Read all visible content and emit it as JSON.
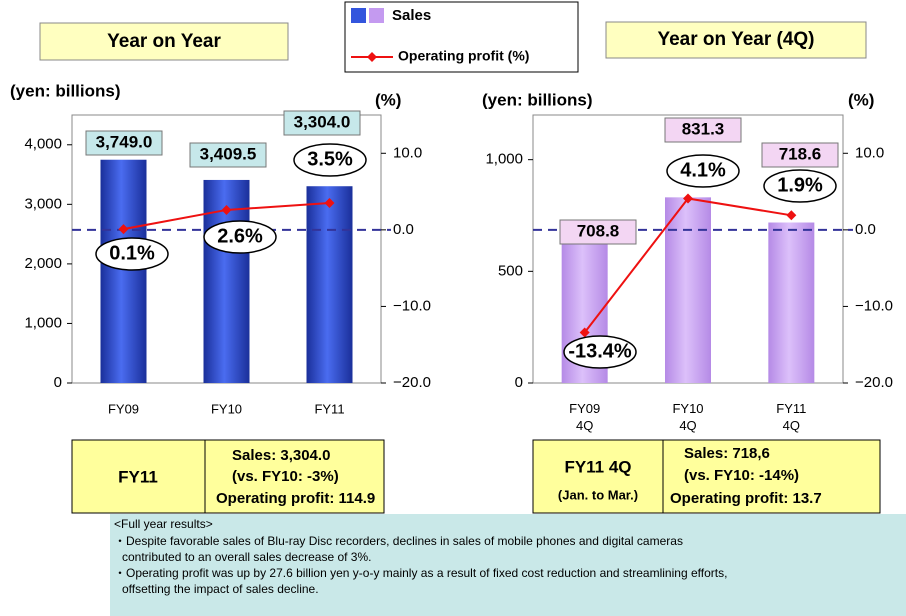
{
  "chart_data": [
    {
      "type": "bar",
      "title": "Year on Year",
      "y_label": "(yen: billions)",
      "y2_label": "(%)",
      "categories": [
        "FY09",
        "FY10",
        "FY11"
      ],
      "series": [
        {
          "name": "Sales",
          "color": "#2244cc",
          "values": [
            3749.0,
            3409.5,
            3304.0
          ],
          "value_labels": [
            "3,749.0",
            "3,409.5",
            "3,304.0"
          ]
        },
        {
          "name": "Operating profit (%)",
          "type": "line",
          "axis": "y2",
          "color": "#ee1111",
          "values": [
            0.1,
            2.6,
            3.5
          ],
          "value_labels": [
            "0.1%",
            "2.6%",
            "3.5%"
          ]
        }
      ],
      "ylim": [
        0,
        4500
      ],
      "yticks": [
        0,
        {
          "value": 1000,
          "label": "1,000"
        },
        {
          "value": 2000,
          "label": "2,000"
        },
        {
          "value": 3000,
          "label": "3,000"
        },
        {
          "value": 4000,
          "label": "4,000"
        }
      ],
      "y2lim": [
        -20,
        15
      ],
      "y2ticks": [
        {
          "value": -20,
          "label": "−20.0"
        },
        {
          "value": -10,
          "label": "−10.0"
        },
        {
          "value": 0,
          "label": "0.0"
        },
        {
          "value": 10,
          "label": "10.0"
        }
      ]
    },
    {
      "type": "bar",
      "title": "Year on Year (4Q)",
      "y_label": "(yen: billions)",
      "y2_label": "(%)",
      "categories": [
        [
          "FY09",
          "4Q"
        ],
        [
          "FY10",
          "4Q"
        ],
        [
          "FY11",
          "4Q"
        ]
      ],
      "series": [
        {
          "color": "#c49af0",
          "values": [
            708.8,
            831.3,
            718.6
          ],
          "value_labels": [
            "708.8",
            "831.3",
            "718.6"
          ]
        },
        {
          "type": "line",
          "axis": "y2",
          "color": "#ee1111",
          "values": [
            -13.4,
            4.1,
            1.9
          ],
          "value_labels": [
            "-13.4%",
            "4.1%",
            "1.9%"
          ]
        }
      ],
      "ylim": [
        0,
        1200
      ],
      "yticks": [
        0,
        500,
        {
          "value": 1000,
          "label": "1,000"
        }
      ],
      "y2lim": [
        -20,
        15
      ],
      "y2ticks": [
        {
          "value": -20,
          "label": "−20.0"
        },
        {
          "value": -10,
          "label": "−10.0"
        },
        {
          "value": 0,
          "label": "0.0"
        },
        {
          "value": 10,
          "label": "10.0"
        }
      ]
    }
  ],
  "summary": [
    {
      "label": "FY11",
      "lines": [
        "Sales: 3,304.0",
        "(vs. FY10: -3%)",
        "Operating profit: 114.9"
      ]
    },
    {
      "label": "FY11 4Q",
      "sublabel": "(Jan. to Mar.)",
      "lines": [
        "Sales: 718,6",
        "(vs. FY10: -14%)",
        "Operating profit: 13.7"
      ]
    }
  ],
  "notes": {
    "heading": "<Full year results>",
    "lines": [
      "・Despite favorable sales of Blu-ray Disc recorders, declines in sales of mobile phones and digital cameras",
      "contributed to an overall sales decrease of 3%.",
      "・Operating profit was up by 27.6 billion yen y-o-y mainly as a result of fixed cost reduction and streamlining efforts,",
      "offsetting the impact of sales decline."
    ]
  }
}
